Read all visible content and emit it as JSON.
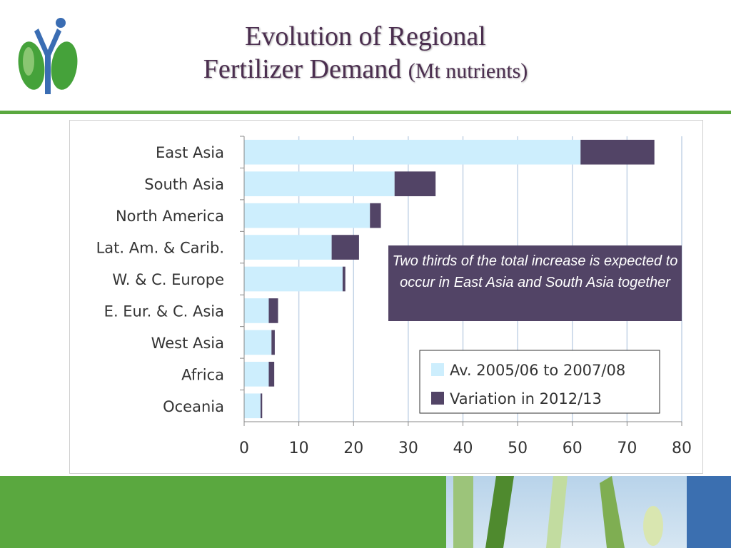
{
  "slide": {
    "title_line1": "Evolution of Regional",
    "title_line2": "Fertilizer Demand",
    "title_unit": "(Mt nutrients)",
    "callout": "Two thirds of the total increase is expected to occur in East Asia and South Asia together"
  },
  "colors": {
    "title": "#4b2e4f",
    "rule_green": "#5aa83f",
    "base_bar": "#cdeefd",
    "variation_bar": "#524466",
    "callout_bg": "#524466",
    "footer_blue": "#3b6fb0"
  },
  "chart_data": {
    "type": "bar",
    "orientation": "horizontal",
    "stacked": true,
    "categories": [
      "East Asia",
      "South Asia",
      "North America",
      "Lat. Am. & Carib.",
      "W. & C. Europe",
      "E. Eur. & C. Asia",
      "West Asia",
      "Africa",
      "Oceania"
    ],
    "series": [
      {
        "name": "Av. 2005/06 to 2007/08",
        "values": [
          61.5,
          27.5,
          23,
          16,
          18,
          4.5,
          5,
          4.5,
          3
        ]
      },
      {
        "name": "Variation in 2012/13",
        "values": [
          13.5,
          7.5,
          2,
          5,
          0.5,
          1.7,
          0.6,
          1,
          0.3
        ]
      }
    ],
    "xlim": [
      0,
      80
    ],
    "xticks": [
      0,
      10,
      20,
      30,
      40,
      50,
      60,
      70,
      80
    ],
    "grid": true,
    "legend_position": "bottom-right"
  }
}
